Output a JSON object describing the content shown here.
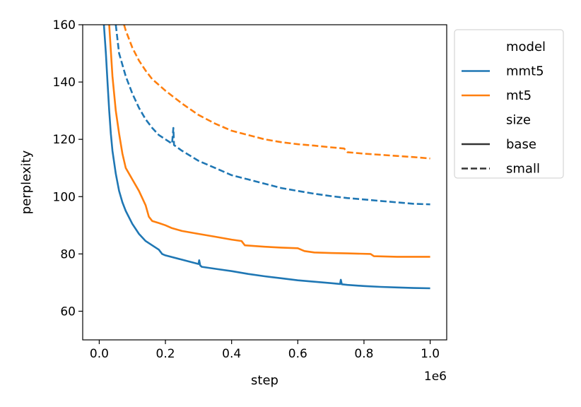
{
  "chart_data": {
    "type": "line",
    "xlabel": "step",
    "ylabel": "perplexity",
    "x_offset_label": "1e6",
    "xlim": [
      -0.05,
      1.05
    ],
    "ylim": [
      50,
      160
    ],
    "x_ticks": [
      0.0,
      0.2,
      0.4,
      0.6,
      0.8,
      1.0
    ],
    "x_tick_labels": [
      "0.0",
      "0.2",
      "0.4",
      "0.6",
      "0.8",
      "1.0"
    ],
    "y_ticks": [
      60,
      80,
      100,
      120,
      140,
      160
    ],
    "y_tick_labels": [
      "60",
      "80",
      "100",
      "120",
      "140",
      "160"
    ],
    "grid": false,
    "legend": {
      "placement": "outside-right",
      "entries": [
        {
          "kind": "header",
          "label": "model"
        },
        {
          "kind": "color",
          "label": "mmt5",
          "color": "#1f77b4"
        },
        {
          "kind": "color",
          "label": "mt5",
          "color": "#ff7f0e"
        },
        {
          "kind": "header",
          "label": "size"
        },
        {
          "kind": "style",
          "label": "base",
          "dash": "solid"
        },
        {
          "kind": "style",
          "label": "small",
          "dash": "dashed"
        }
      ]
    },
    "series": [
      {
        "name": "mmt5 base",
        "model": "mmt5",
        "size": "base",
        "color": "#1f77b4",
        "dash": "solid",
        "points": [
          [
            0.014,
            160
          ],
          [
            0.02,
            150
          ],
          [
            0.025,
            140
          ],
          [
            0.03,
            130
          ],
          [
            0.035,
            122
          ],
          [
            0.04,
            116
          ],
          [
            0.05,
            108
          ],
          [
            0.06,
            102
          ],
          [
            0.07,
            98
          ],
          [
            0.08,
            95
          ],
          [
            0.1,
            90.5
          ],
          [
            0.12,
            87
          ],
          [
            0.14,
            84.5
          ],
          [
            0.16,
            83
          ],
          [
            0.18,
            81.5
          ],
          [
            0.19,
            80
          ],
          [
            0.2,
            79.5
          ],
          [
            0.25,
            78
          ],
          [
            0.3,
            76.5
          ],
          [
            0.302,
            77.8
          ],
          [
            0.305,
            76
          ],
          [
            0.31,
            75.5
          ],
          [
            0.35,
            74.8
          ],
          [
            0.4,
            74
          ],
          [
            0.45,
            73
          ],
          [
            0.5,
            72.2
          ],
          [
            0.55,
            71.5
          ],
          [
            0.6,
            70.8
          ],
          [
            0.65,
            70.3
          ],
          [
            0.7,
            69.8
          ],
          [
            0.728,
            69.5
          ],
          [
            0.73,
            71
          ],
          [
            0.733,
            69.4
          ],
          [
            0.75,
            69.2
          ],
          [
            0.8,
            68.8
          ],
          [
            0.85,
            68.5
          ],
          [
            0.9,
            68.3
          ],
          [
            0.95,
            68.1
          ],
          [
            1.0,
            68
          ]
        ]
      },
      {
        "name": "mt5 base",
        "model": "mt5",
        "size": "base",
        "color": "#ff7f0e",
        "dash": "solid",
        "points": [
          [
            0.03,
            160
          ],
          [
            0.04,
            142
          ],
          [
            0.05,
            130
          ],
          [
            0.06,
            122
          ],
          [
            0.07,
            115
          ],
          [
            0.08,
            110
          ],
          [
            0.1,
            106
          ],
          [
            0.12,
            102
          ],
          [
            0.14,
            97
          ],
          [
            0.15,
            93
          ],
          [
            0.16,
            91.5
          ],
          [
            0.18,
            90.8
          ],
          [
            0.2,
            90
          ],
          [
            0.22,
            89
          ],
          [
            0.25,
            88
          ],
          [
            0.3,
            87
          ],
          [
            0.35,
            86
          ],
          [
            0.4,
            85
          ],
          [
            0.43,
            84.5
          ],
          [
            0.44,
            83
          ],
          [
            0.5,
            82.5
          ],
          [
            0.55,
            82.2
          ],
          [
            0.6,
            82
          ],
          [
            0.62,
            81
          ],
          [
            0.65,
            80.5
          ],
          [
            0.7,
            80.3
          ],
          [
            0.75,
            80.2
          ],
          [
            0.82,
            80
          ],
          [
            0.83,
            79.2
          ],
          [
            0.9,
            79
          ],
          [
            0.95,
            79
          ],
          [
            1.0,
            79
          ]
        ]
      },
      {
        "name": "mmt5 small",
        "model": "mmt5",
        "size": "small",
        "color": "#1f77b4",
        "dash": "dashed",
        "points": [
          [
            0.05,
            160
          ],
          [
            0.06,
            150
          ],
          [
            0.08,
            142
          ],
          [
            0.1,
            136
          ],
          [
            0.12,
            131
          ],
          [
            0.14,
            127
          ],
          [
            0.16,
            124
          ],
          [
            0.18,
            121.5
          ],
          [
            0.2,
            120
          ],
          [
            0.22,
            118.5
          ],
          [
            0.224,
            124
          ],
          [
            0.226,
            118
          ],
          [
            0.25,
            116
          ],
          [
            0.3,
            112.5
          ],
          [
            0.35,
            110
          ],
          [
            0.4,
            107.5
          ],
          [
            0.45,
            106
          ],
          [
            0.5,
            104.5
          ],
          [
            0.55,
            103
          ],
          [
            0.6,
            102
          ],
          [
            0.65,
            101
          ],
          [
            0.7,
            100.2
          ],
          [
            0.75,
            99.5
          ],
          [
            0.8,
            99
          ],
          [
            0.85,
            98.5
          ],
          [
            0.9,
            98
          ],
          [
            0.95,
            97.5
          ],
          [
            1.0,
            97.3
          ]
        ]
      },
      {
        "name": "mt5 small",
        "model": "mt5",
        "size": "small",
        "color": "#ff7f0e",
        "dash": "dashed",
        "points": [
          [
            0.075,
            160
          ],
          [
            0.08,
            158
          ],
          [
            0.1,
            152
          ],
          [
            0.12,
            147.5
          ],
          [
            0.14,
            144
          ],
          [
            0.16,
            141
          ],
          [
            0.18,
            139
          ],
          [
            0.2,
            137
          ],
          [
            0.22,
            135.2
          ],
          [
            0.25,
            132.5
          ],
          [
            0.3,
            128.5
          ],
          [
            0.35,
            125.5
          ],
          [
            0.4,
            123
          ],
          [
            0.45,
            121.5
          ],
          [
            0.5,
            120
          ],
          [
            0.55,
            119
          ],
          [
            0.6,
            118.3
          ],
          [
            0.65,
            117.8
          ],
          [
            0.7,
            117.2
          ],
          [
            0.74,
            116.8
          ],
          [
            0.75,
            115.5
          ],
          [
            0.8,
            115
          ],
          [
            0.85,
            114.6
          ],
          [
            0.9,
            114.2
          ],
          [
            0.95,
            113.8
          ],
          [
            1.0,
            113.3
          ]
        ]
      }
    ]
  }
}
